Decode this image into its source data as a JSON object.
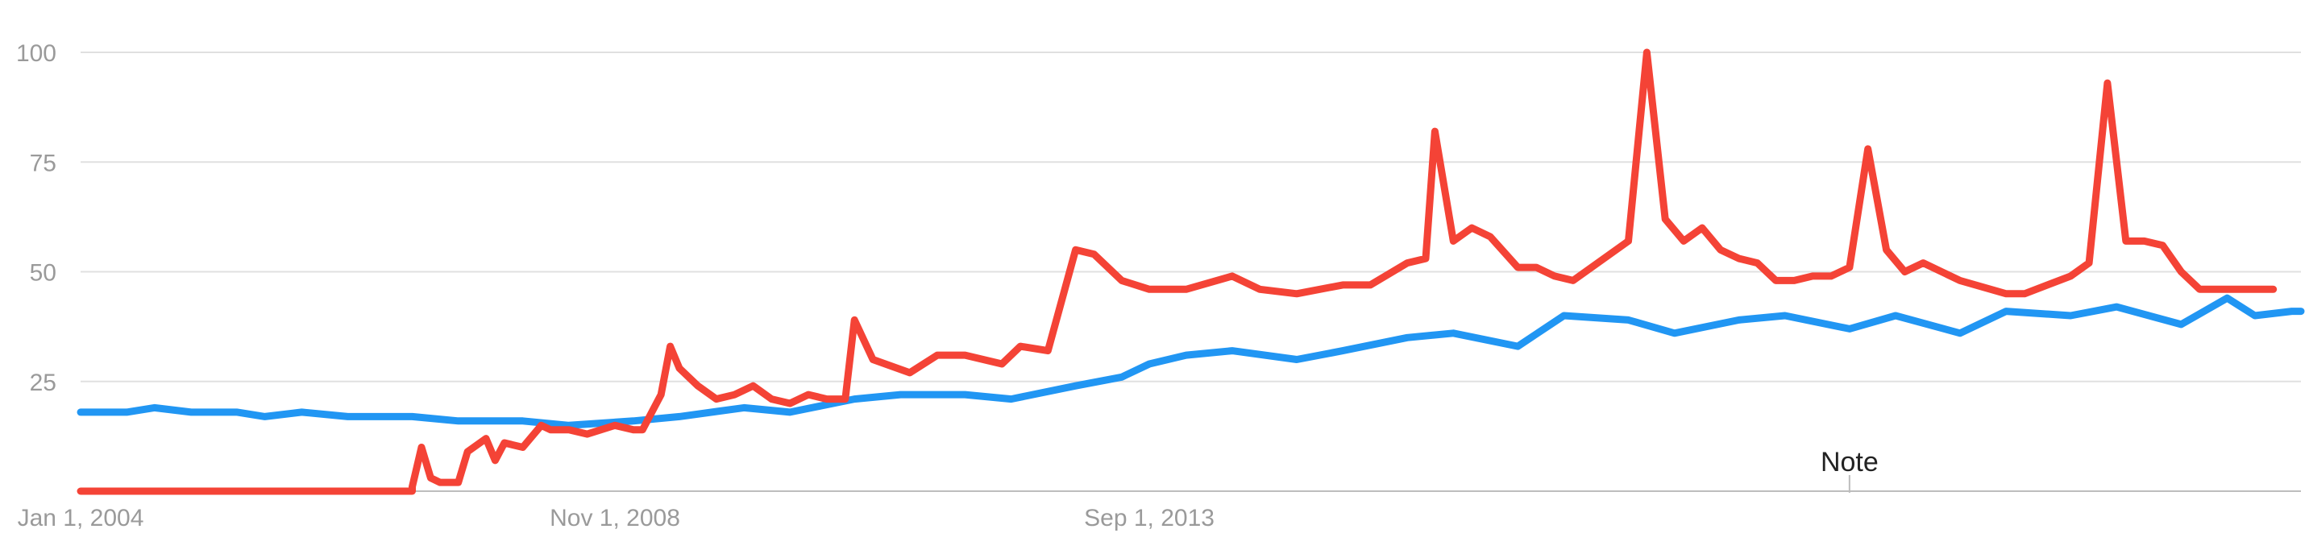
{
  "chart_data": {
    "type": "line",
    "title": "",
    "xlabel": "",
    "ylabel": "",
    "ylim": [
      0,
      100
    ],
    "yticks": [
      25,
      50,
      75,
      100
    ],
    "grid": true,
    "x_range": [
      "2004-01",
      "2024-02"
    ],
    "x_tick_labels": [
      {
        "date": "2004-01",
        "label": "Jan 1, 2004"
      },
      {
        "date": "2008-11",
        "label": "Nov 1, 2008"
      },
      {
        "date": "2013-09",
        "label": "Sep 1, 2013"
      }
    ],
    "annotations": [
      {
        "date": "2020-01",
        "label": "Note"
      }
    ],
    "series": [
      {
        "color": "#2196f3",
        "points": [
          [
            "2004-01",
            18
          ],
          [
            "2004-06",
            18
          ],
          [
            "2004-09",
            19
          ],
          [
            "2005-01",
            18
          ],
          [
            "2005-06",
            18
          ],
          [
            "2005-09",
            17
          ],
          [
            "2006-01",
            18
          ],
          [
            "2006-06",
            17
          ],
          [
            "2007-01",
            17
          ],
          [
            "2007-06",
            16
          ],
          [
            "2008-01",
            16
          ],
          [
            "2008-06",
            15
          ],
          [
            "2009-01",
            16
          ],
          [
            "2009-06",
            17
          ],
          [
            "2010-01",
            19
          ],
          [
            "2010-06",
            18
          ],
          [
            "2011-01",
            21
          ],
          [
            "2011-06",
            22
          ],
          [
            "2012-01",
            22
          ],
          [
            "2012-06",
            21
          ],
          [
            "2013-01",
            24
          ],
          [
            "2013-06",
            26
          ],
          [
            "2013-09",
            29
          ],
          [
            "2014-01",
            31
          ],
          [
            "2014-06",
            32
          ],
          [
            "2015-01",
            30
          ],
          [
            "2015-06",
            32
          ],
          [
            "2016-01",
            35
          ],
          [
            "2016-06",
            36
          ],
          [
            "2017-01",
            33
          ],
          [
            "2017-06",
            40
          ],
          [
            "2018-01",
            39
          ],
          [
            "2018-06",
            36
          ],
          [
            "2019-01",
            39
          ],
          [
            "2019-06",
            40
          ],
          [
            "2020-01",
            37
          ],
          [
            "2020-06",
            40
          ],
          [
            "2021-01",
            36
          ],
          [
            "2021-06",
            41
          ],
          [
            "2022-01",
            40
          ],
          [
            "2022-06",
            42
          ],
          [
            "2023-01",
            38
          ],
          [
            "2023-06",
            44
          ],
          [
            "2023-09",
            40
          ],
          [
            "2024-01",
            41
          ],
          [
            "2024-02",
            41
          ]
        ]
      },
      {
        "color": "#f44336",
        "points": [
          [
            "2004-01",
            0
          ],
          [
            "2005-01",
            0
          ],
          [
            "2006-01",
            0
          ],
          [
            "2006-06",
            0
          ],
          [
            "2007-01",
            0
          ],
          [
            "2007-01",
            1
          ],
          [
            "2007-02",
            10
          ],
          [
            "2007-03",
            3
          ],
          [
            "2007-04",
            2
          ],
          [
            "2007-05",
            2
          ],
          [
            "2007-06",
            2
          ],
          [
            "2007-07",
            9
          ],
          [
            "2007-09",
            12
          ],
          [
            "2007-10",
            7
          ],
          [
            "2007-11",
            11
          ],
          [
            "2008-01",
            10
          ],
          [
            "2008-03",
            15
          ],
          [
            "2008-04",
            14
          ],
          [
            "2008-06",
            14
          ],
          [
            "2008-08",
            13
          ],
          [
            "2008-11",
            15
          ],
          [
            "2009-01",
            14
          ],
          [
            "2009-02",
            14
          ],
          [
            "2009-04",
            22
          ],
          [
            "2009-05",
            33
          ],
          [
            "2009-06",
            28
          ],
          [
            "2009-08",
            24
          ],
          [
            "2009-10",
            21
          ],
          [
            "2009-12",
            22
          ],
          [
            "2010-02",
            24
          ],
          [
            "2010-04",
            21
          ],
          [
            "2010-06",
            20
          ],
          [
            "2010-08",
            22
          ],
          [
            "2010-10",
            21
          ],
          [
            "2010-12",
            21
          ],
          [
            "2011-01",
            39
          ],
          [
            "2011-03",
            30
          ],
          [
            "2011-07",
            27
          ],
          [
            "2011-10",
            31
          ],
          [
            "2012-01",
            31
          ],
          [
            "2012-05",
            29
          ],
          [
            "2012-07",
            33
          ],
          [
            "2012-10",
            32
          ],
          [
            "2013-01",
            55
          ],
          [
            "2013-03",
            54
          ],
          [
            "2013-06",
            48
          ],
          [
            "2013-09",
            46
          ],
          [
            "2014-01",
            46
          ],
          [
            "2014-06",
            49
          ],
          [
            "2014-09",
            46
          ],
          [
            "2015-01",
            45
          ],
          [
            "2015-06",
            47
          ],
          [
            "2015-09",
            47
          ],
          [
            "2016-01",
            52
          ],
          [
            "2016-03",
            53
          ],
          [
            "2016-04",
            82
          ],
          [
            "2016-06",
            57
          ],
          [
            "2016-08",
            60
          ],
          [
            "2016-10",
            58
          ],
          [
            "2017-01",
            51
          ],
          [
            "2017-03",
            51
          ],
          [
            "2017-05",
            49
          ],
          [
            "2017-07",
            48
          ],
          [
            "2018-01",
            57
          ],
          [
            "2018-03",
            100
          ],
          [
            "2018-05",
            62
          ],
          [
            "2018-07",
            57
          ],
          [
            "2018-09",
            60
          ],
          [
            "2018-11",
            55
          ],
          [
            "2019-01",
            53
          ],
          [
            "2019-03",
            52
          ],
          [
            "2019-05",
            48
          ],
          [
            "2019-07",
            48
          ],
          [
            "2019-09",
            49
          ],
          [
            "2019-11",
            49
          ],
          [
            "2020-01",
            51
          ],
          [
            "2020-03",
            78
          ],
          [
            "2020-05",
            55
          ],
          [
            "2020-07",
            50
          ],
          [
            "2020-09",
            52
          ],
          [
            "2021-01",
            48
          ],
          [
            "2021-06",
            45
          ],
          [
            "2021-08",
            45
          ],
          [
            "2022-01",
            49
          ],
          [
            "2022-03",
            52
          ],
          [
            "2022-05",
            93
          ],
          [
            "2022-07",
            57
          ],
          [
            "2022-09",
            57
          ],
          [
            "2022-11",
            56
          ],
          [
            "2023-01",
            50
          ],
          [
            "2023-03",
            46
          ],
          [
            "2023-06",
            46
          ],
          [
            "2023-09",
            46
          ],
          [
            "2023-11",
            46
          ]
        ]
      }
    ]
  }
}
